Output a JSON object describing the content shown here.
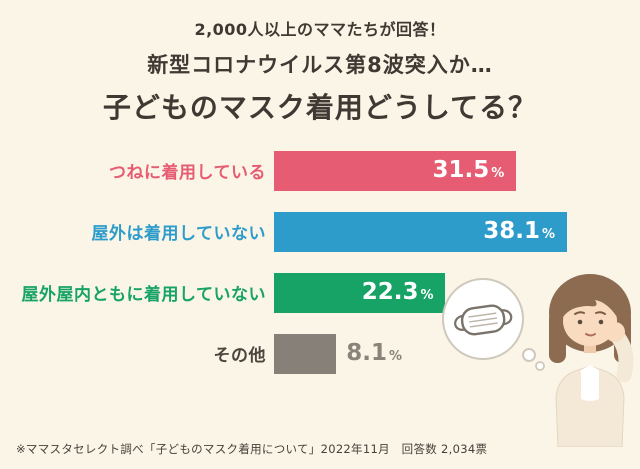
{
  "header": {
    "line1": "2,000人以上のママたちが回答！",
    "line2": "新型コロナウイルス第8波突入か…",
    "line3": "子どものマスク着用どうしてる？"
  },
  "chart_data": {
    "type": "bar",
    "orientation": "horizontal",
    "title": "子どものマスク着用どうしてる？",
    "categories": [
      "つねに着用している",
      "屋外は着用していない",
      "屋外屋内ともに着用していない",
      "その他"
    ],
    "values": [
      31.5,
      38.1,
      22.3,
      8.1
    ],
    "unit": "%",
    "bar_colors": [
      "#e65d73",
      "#2e9ccb",
      "#17a366",
      "#878078"
    ],
    "label_colors": [
      "#e65d73",
      "#2e9ccb",
      "#17a366",
      "#4a453d"
    ],
    "value_inside_bar": [
      true,
      true,
      true,
      false
    ],
    "outside_value_color": "#8a8379",
    "xlim": [
      0,
      40
    ],
    "grid": false,
    "legend": false
  },
  "footnote": "※ママスタセレクト調べ「子どものマスク着用について」2022年11月　回答数 2,034票",
  "illustration": {
    "bubble_icon": "face-mask",
    "figure": "worried-mother"
  },
  "background_color": "#faf5e7"
}
